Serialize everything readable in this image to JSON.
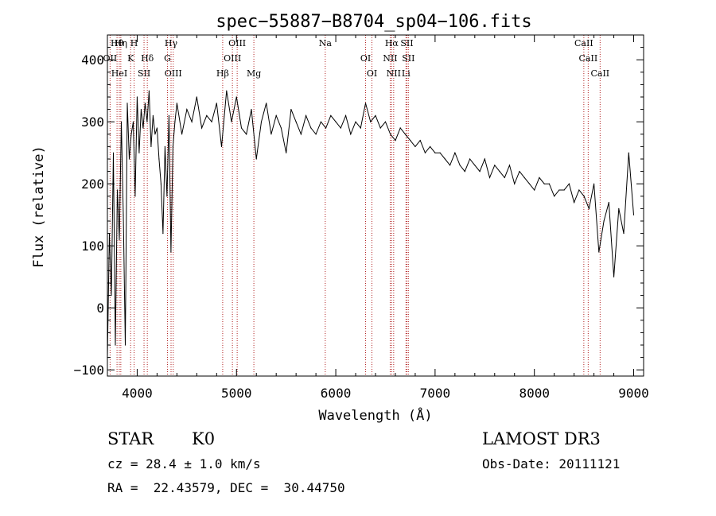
{
  "chart_data": {
    "type": "line",
    "title": "spec−55887−B8704_sp04−106.fits",
    "xlabel": "Wavelength (Å)",
    "ylabel": "Flux (relative)",
    "xlim": [
      3700,
      9100
    ],
    "ylim": [
      -110,
      440
    ],
    "xticks": [
      4000,
      5000,
      6000,
      7000,
      8000,
      9000
    ],
    "yticks": [
      -100,
      0,
      100,
      200,
      300,
      400
    ],
    "series": [
      {
        "name": "flux",
        "x": [
          3700,
          3720,
          3740,
          3760,
          3780,
          3800,
          3820,
          3840,
          3860,
          3880,
          3900,
          3920,
          3940,
          3960,
          3980,
          4000,
          4020,
          4040,
          4060,
          4080,
          4100,
          4120,
          4140,
          4160,
          4180,
          4200,
          4220,
          4240,
          4260,
          4280,
          4300,
          4320,
          4340,
          4360,
          4380,
          4400,
          4450,
          4500,
          4550,
          4600,
          4650,
          4700,
          4750,
          4800,
          4850,
          4900,
          4950,
          5000,
          5050,
          5100,
          5150,
          5200,
          5250,
          5300,
          5350,
          5400,
          5450,
          5500,
          5550,
          5600,
          5650,
          5700,
          5750,
          5800,
          5850,
          5900,
          5950,
          6000,
          6050,
          6100,
          6150,
          6200,
          6250,
          6300,
          6350,
          6400,
          6450,
          6500,
          6550,
          6600,
          6650,
          6700,
          6750,
          6800,
          6850,
          6900,
          6950,
          7000,
          7050,
          7100,
          7150,
          7200,
          7250,
          7300,
          7350,
          7400,
          7450,
          7500,
          7550,
          7600,
          7650,
          7700,
          7750,
          7800,
          7850,
          7900,
          7950,
          8000,
          8050,
          8100,
          8150,
          8200,
          8250,
          8300,
          8350,
          8400,
          8450,
          8500,
          8550,
          8600,
          8650,
          8700,
          8750,
          8800,
          8850,
          8900,
          8950,
          9000
        ],
        "values": [
          -80,
          120,
          20,
          250,
          -60,
          190,
          110,
          300,
          150,
          -60,
          330,
          240,
          280,
          300,
          180,
          340,
          250,
          320,
          290,
          330,
          300,
          350,
          260,
          310,
          280,
          290,
          240,
          200,
          120,
          260,
          180,
          310,
          90,
          260,
          300,
          330,
          280,
          320,
          300,
          340,
          290,
          310,
          300,
          330,
          260,
          350,
          300,
          340,
          290,
          280,
          320,
          240,
          300,
          330,
          280,
          310,
          290,
          250,
          320,
          300,
          280,
          310,
          290,
          280,
          300,
          290,
          310,
          300,
          290,
          310,
          280,
          300,
          290,
          330,
          300,
          310,
          290,
          300,
          280,
          270,
          290,
          280,
          270,
          260,
          270,
          250,
          260,
          250,
          250,
          240,
          230,
          250,
          230,
          220,
          240,
          230,
          220,
          240,
          210,
          230,
          220,
          210,
          230,
          200,
          220,
          210,
          200,
          190,
          210,
          200,
          200,
          180,
          190,
          190,
          200,
          170,
          190,
          180,
          160,
          200,
          90,
          140,
          170,
          50,
          160,
          120,
          250,
          150
        ]
      }
    ],
    "lines": [
      {
        "name": "Hθ",
        "x": 3797
      },
      {
        "name": "OII",
        "x": 3727
      },
      {
        "name": "HeI",
        "x": 3820
      },
      {
        "name": "Hη",
        "x": 3835
      },
      {
        "name": "K",
        "x": 3934
      },
      {
        "name": "SII",
        "x": 4069
      },
      {
        "name": "H",
        "x": 3969
      },
      {
        "name": "Hδ",
        "x": 4102
      },
      {
        "name": "OIII",
        "x": 4363
      },
      {
        "name": "Hγ",
        "x": 4341
      },
      {
        "name": "G",
        "x": 4305
      },
      {
        "name": "Hβ",
        "x": 4861
      },
      {
        "name": "OIII",
        "x": 5007
      },
      {
        "name": "OIII",
        "x": 4959
      },
      {
        "name": "Mg",
        "x": 5175
      },
      {
        "name": "Na",
        "x": 5894
      },
      {
        "name": "OI",
        "x": 6300
      },
      {
        "name": "OI",
        "x": 6364
      },
      {
        "name": "Hα",
        "x": 6563
      },
      {
        "name": "NII",
        "x": 6548
      },
      {
        "name": "NII",
        "x": 6583
      },
      {
        "name": "SII",
        "x": 6716
      },
      {
        "name": "SII",
        "x": 6731
      },
      {
        "name": "Li",
        "x": 6707
      },
      {
        "name": "CaII",
        "x": 8498
      },
      {
        "name": "CaII",
        "x": 8542
      },
      {
        "name": "CaII",
        "x": 8662
      }
    ]
  },
  "info": {
    "class_label": "STAR",
    "subclass": "K0",
    "survey": "LAMOST DR3",
    "cz": "cz = 28.4 ± 1.0 km/s",
    "obs_date": "Obs-Date: 20111121",
    "radec": "RA =  22.43579, DEC =  30.44750"
  },
  "colors": {
    "line_marker": "#b22222",
    "spectrum": "#000000"
  }
}
